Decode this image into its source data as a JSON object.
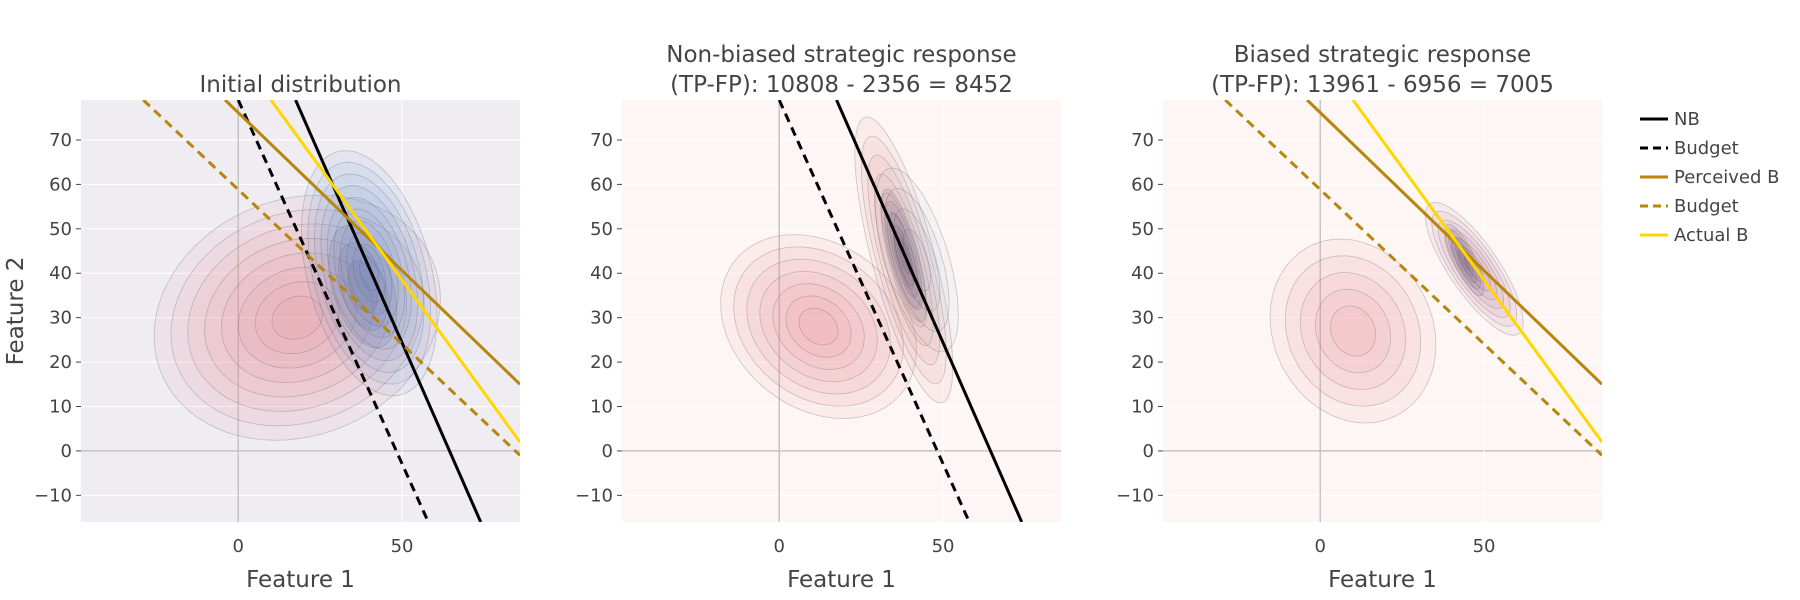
{
  "chart_data": [
    {
      "type": "line",
      "title": "Initial distribution",
      "subtitle": "",
      "xlabel": "Feature 1",
      "ylabel": "Feature 2",
      "xlim": [
        -48,
        86
      ],
      "ylim": [
        -16,
        79
      ],
      "xticks": [
        0,
        50
      ],
      "yticks": [
        -10,
        0,
        10,
        20,
        30,
        40,
        50,
        60,
        70
      ],
      "background": "#efecf2",
      "grid": true,
      "series": [
        {
          "name": "NB",
          "x": [
            17.5,
            74
          ],
          "y": [
            79,
            -16
          ]
        },
        {
          "name": "Budget",
          "x": [
            0,
            58
          ],
          "y": [
            79,
            -16
          ]
        },
        {
          "name": "Perceived B",
          "x": [
            -4,
            86
          ],
          "y": [
            79,
            15
          ]
        },
        {
          "name": "Budget",
          "x": [
            -29,
            86
          ],
          "y": [
            79,
            -1
          ]
        },
        {
          "name": "Actual B",
          "x": [
            10,
            86
          ],
          "y": [
            79,
            2
          ]
        }
      ],
      "densities": [
        {
          "cx": 18,
          "cy": 30,
          "sx": 19,
          "sy": 12,
          "rho": 0.15,
          "color": "#e8828f",
          "levels": 8
        },
        {
          "cx": 40,
          "cy": 40,
          "sx": 9,
          "sy": 12,
          "rho": -0.35,
          "color": "#6a9fd0",
          "levels": 10
        },
        {
          "cx": 38,
          "cy": 37,
          "sx": 4.5,
          "sy": 6,
          "rho": -0.4,
          "color": "#524a82",
          "levels": 3
        }
      ]
    },
    {
      "type": "line",
      "title": "Non-biased strategic response",
      "subtitle": "(TP-FP): 10808 - 2356 = 8452",
      "xlabel": "Feature 1",
      "ylabel": "",
      "xlim": [
        -48,
        86
      ],
      "ylim": [
        -16,
        79
      ],
      "xticks": [
        0,
        50
      ],
      "yticks": [
        -10,
        0,
        10,
        20,
        30,
        40,
        50,
        60,
        70
      ],
      "background": "#fdf6f5",
      "grid": true,
      "series": [
        {
          "name": "NB",
          "x": [
            17.5,
            74
          ],
          "y": [
            79,
            -16
          ]
        },
        {
          "name": "Budget",
          "x": [
            0,
            58
          ],
          "y": [
            79,
            -16
          ]
        }
      ],
      "densities": [
        {
          "cx": 12,
          "cy": 28,
          "sx": 13,
          "sy": 9,
          "rho": -0.25,
          "color": "#e8828f",
          "levels": 7
        },
        {
          "cx": 38,
          "cy": 43,
          "sx": 6.5,
          "sy": 14,
          "rho": -0.75,
          "color": "#d9808a",
          "levels": 7
        },
        {
          "cx": 42,
          "cy": 43,
          "sx": 5.5,
          "sy": 9,
          "rho": -0.6,
          "color": "#aab8d0",
          "levels": 4
        },
        {
          "cx": 38,
          "cy": 44,
          "sx": 3,
          "sy": 6.5,
          "rho": -0.75,
          "color": "#352c55",
          "levels": 5
        }
      ]
    },
    {
      "type": "line",
      "title": "Biased strategic response",
      "subtitle": "(TP-FP): 13961 - 6956 = 7005",
      "xlabel": "Feature 1",
      "ylabel": "",
      "xlim": [
        -48,
        86
      ],
      "ylim": [
        -16,
        79
      ],
      "xticks": [
        0,
        50
      ],
      "yticks": [
        -10,
        0,
        10,
        20,
        30,
        40,
        50,
        60,
        70
      ],
      "background": "#fdf6f5",
      "grid": true,
      "series": [
        {
          "name": "Perceived B",
          "x": [
            -4,
            86
          ],
          "y": [
            79,
            15
          ]
        },
        {
          "name": "Budget",
          "x": [
            -29,
            86
          ],
          "y": [
            79,
            -1
          ]
        },
        {
          "name": "Actual B",
          "x": [
            10,
            86
          ],
          "y": [
            79,
            2
          ]
        }
      ],
      "densities": [
        {
          "cx": 10,
          "cy": 27,
          "sx": 11,
          "sy": 9,
          "rho": -0.15,
          "color": "#e8828f",
          "levels": 5
        },
        {
          "cx": 47,
          "cy": 41,
          "sx": 6.5,
          "sy": 6.5,
          "rho": -0.8,
          "color": "#c27b9a",
          "levels": 7
        },
        {
          "cx": 44,
          "cy": 43,
          "sx": 2.6,
          "sy": 3.5,
          "rho": -0.8,
          "color": "#352c55",
          "levels": 5
        }
      ]
    }
  ],
  "legend": {
    "placement": "right",
    "items": [
      {
        "label": "NB",
        "color": "#000000",
        "dash": false
      },
      {
        "label": "Budget",
        "color": "#000000",
        "dash": true
      },
      {
        "label": "Perceived B",
        "color": "#b8860b",
        "dash": false
      },
      {
        "label": "Budget",
        "color": "#b8860b",
        "dash": true
      },
      {
        "label": "Actual B",
        "color": "#ffd700",
        "dash": false
      }
    ]
  }
}
